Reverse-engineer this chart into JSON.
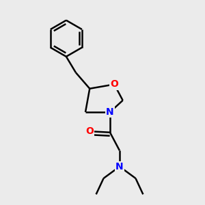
{
  "background_color": "#ebebeb",
  "bond_color": "#000000",
  "bond_width": 1.8,
  "atom_colors": {
    "O": "#ff0000",
    "N": "#0000ff"
  },
  "figsize": [
    3.0,
    3.0
  ],
  "dpi": 100,
  "xlim": [
    0.15,
    0.85
  ],
  "ylim": [
    0.02,
    0.98
  ]
}
